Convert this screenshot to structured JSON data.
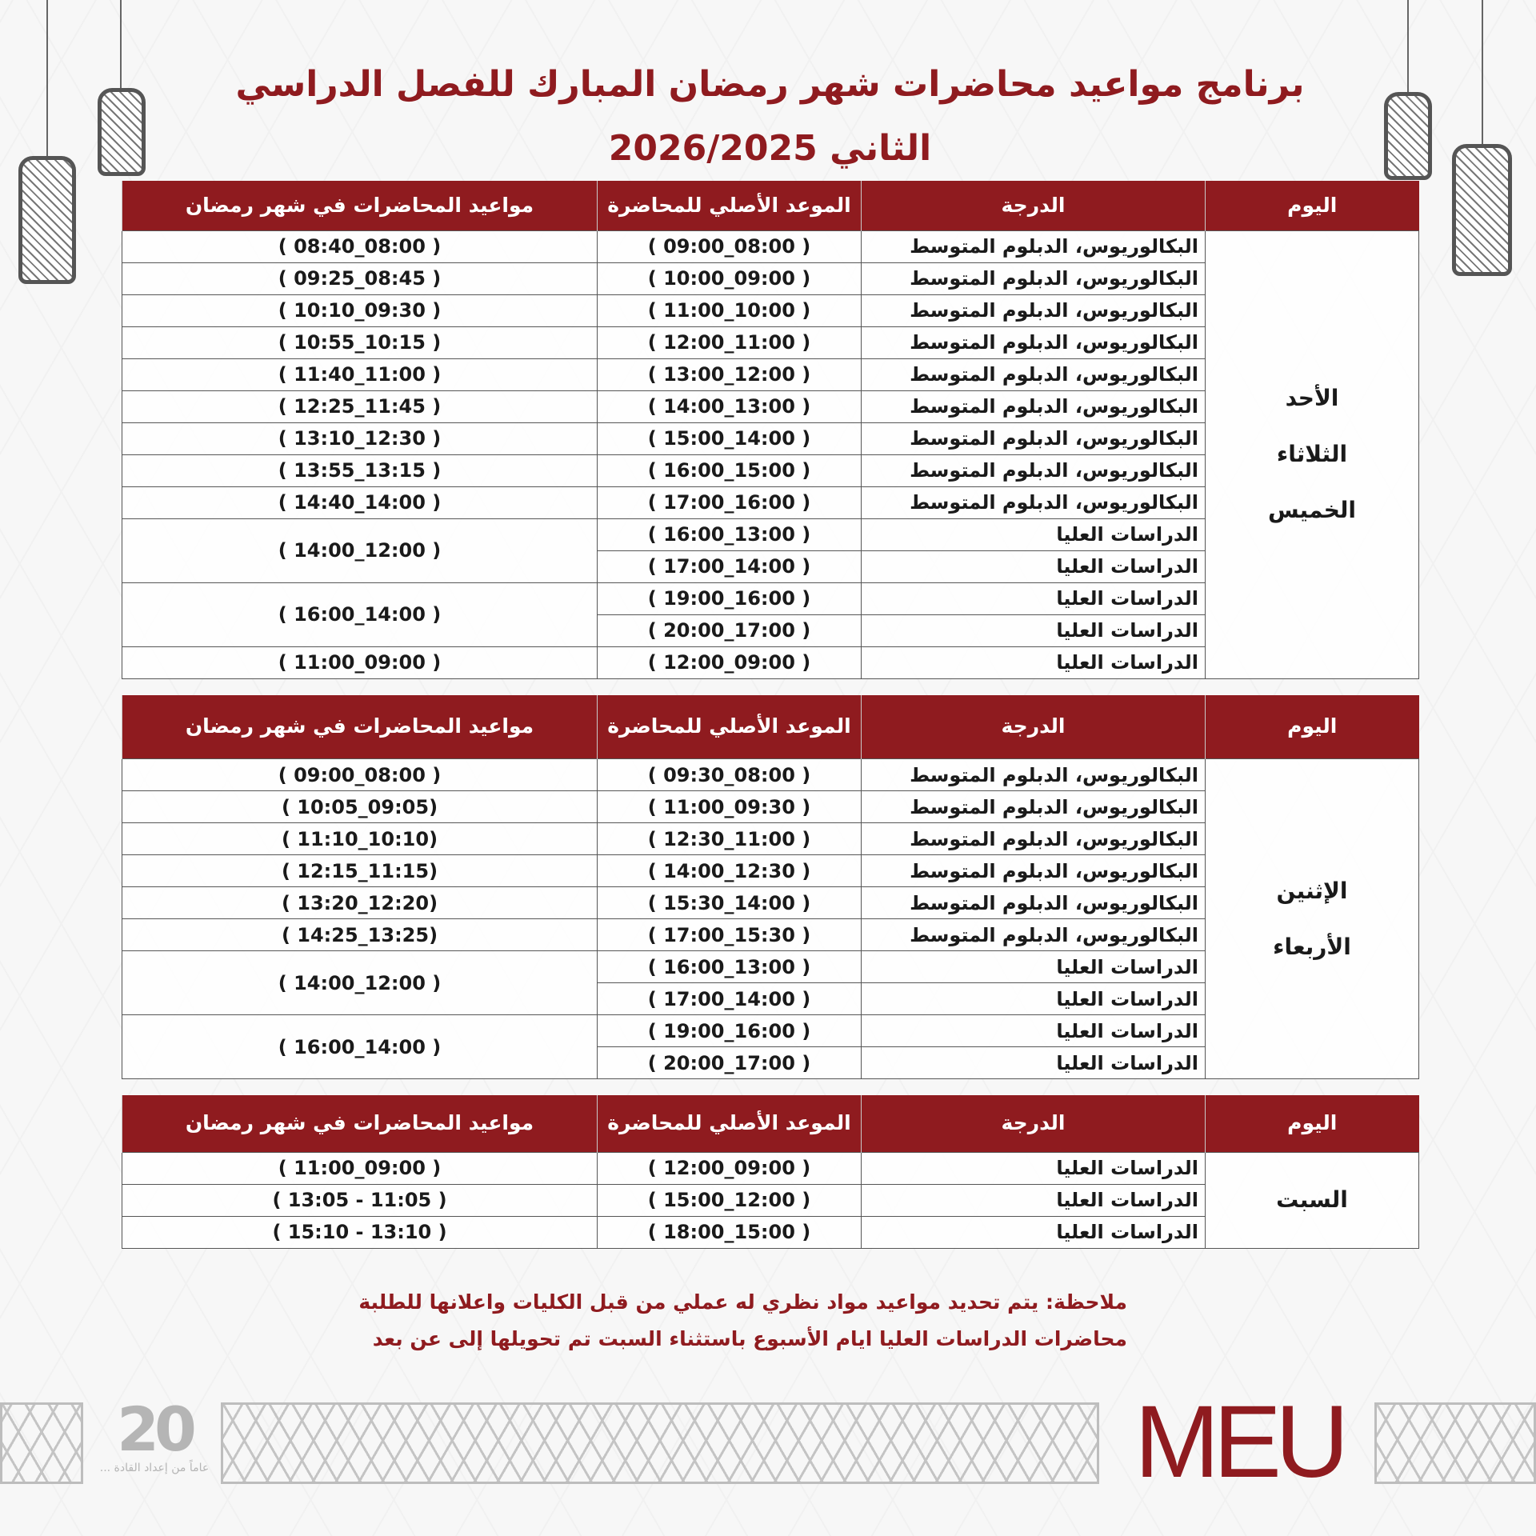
{
  "title": {
    "line1": "برنامج مواعيد محاضرات شهر رمضان المبارك للفصل الدراسي",
    "line2": "الثاني 2026/2025"
  },
  "colors": {
    "accent": "#8f1b1f"
  },
  "headers": [
    "اليوم",
    "الدرجة",
    "الموعد الأصلي للمحاضرة",
    "مواعيد المحاضرات في شهر رمضان"
  ],
  "tables": [
    {
      "days": [
        "الأحد",
        "الثلاثاء",
        "الخميس"
      ],
      "rows": [
        {
          "degree": "البكالوريوس، الدبلوم المتوسط",
          "original": "( 09:00_08:00 )",
          "ramadan": "( 08:40_08:00 )"
        },
        {
          "degree": "البكالوريوس، الدبلوم المتوسط",
          "original": "( 10:00_09:00 )",
          "ramadan": "( 09:25_08:45 )"
        },
        {
          "degree": "البكالوريوس، الدبلوم المتوسط",
          "original": "( 11:00_10:00 )",
          "ramadan": "( 10:10_09:30 )"
        },
        {
          "degree": "البكالوريوس، الدبلوم المتوسط",
          "original": "( 12:00_11:00 )",
          "ramadan": "( 10:55_10:15 )"
        },
        {
          "degree": "البكالوريوس، الدبلوم المتوسط",
          "original": "( 13:00_12:00 )",
          "ramadan": "( 11:40_11:00 )"
        },
        {
          "degree": "البكالوريوس، الدبلوم المتوسط",
          "original": "( 14:00_13:00 )",
          "ramadan": "( 12:25_11:45 )"
        },
        {
          "degree": "البكالوريوس، الدبلوم المتوسط",
          "original": "( 15:00_14:00 )",
          "ramadan": "( 13:10_12:30 )"
        },
        {
          "degree": "البكالوريوس، الدبلوم المتوسط",
          "original": "( 16:00_15:00 )",
          "ramadan": "( 13:55_13:15 )"
        },
        {
          "degree": "البكالوريوس، الدبلوم المتوسط",
          "original": "( 17:00_16:00 )",
          "ramadan": "( 14:40_14:00 )"
        },
        {
          "degree": "الدراسات العليا",
          "original": "( 16:00_13:00 )",
          "ramadan": "( 14:00_12:00 )",
          "span": 2
        },
        {
          "degree": "الدراسات العليا",
          "original": "( 17:00_14:00 )"
        },
        {
          "degree": "الدراسات العليا",
          "original": "( 19:00_16:00 )",
          "ramadan": "( 16:00_14:00 )",
          "span": 2
        },
        {
          "degree": "الدراسات العليا",
          "original": "( 20:00_17:00 )"
        },
        {
          "degree": "الدراسات العليا",
          "original": "( 12:00_09:00 )",
          "ramadan": "( 11:00_09:00 )"
        }
      ]
    },
    {
      "days": [
        "الإثنين",
        "الأربعاء"
      ],
      "rows": [
        {
          "degree": "البكالوريوس، الدبلوم المتوسط",
          "original": "( 09:30_08:00 )",
          "ramadan": "( 09:00_08:00 )"
        },
        {
          "degree": "البكالوريوس، الدبلوم المتوسط",
          "original": "( 11:00_09:30 )",
          "ramadan": "( 10:05_09:05)"
        },
        {
          "degree": "البكالوريوس، الدبلوم المتوسط",
          "original": "( 12:30_11:00 )",
          "ramadan": "( 11:10_10:10)"
        },
        {
          "degree": "البكالوريوس، الدبلوم المتوسط",
          "original": "( 14:00_12:30 )",
          "ramadan": "( 12:15_11:15)"
        },
        {
          "degree": "البكالوريوس، الدبلوم المتوسط",
          "original": "( 15:30_14:00 )",
          "ramadan": "( 13:20_12:20)"
        },
        {
          "degree": "البكالوريوس، الدبلوم المتوسط",
          "original": "( 17:00_15:30 )",
          "ramadan": "( 14:25_13:25)"
        },
        {
          "degree": "الدراسات العليا",
          "original": "( 16:00_13:00 )",
          "ramadan": "( 14:00_12:00 )",
          "span": 2
        },
        {
          "degree": "الدراسات العليا",
          "original": "( 17:00_14:00 )"
        },
        {
          "degree": "الدراسات العليا",
          "original": "( 19:00_16:00 )",
          "ramadan": "( 16:00_14:00 )",
          "span": 2
        },
        {
          "degree": "الدراسات العليا",
          "original": "( 20:00_17:00 )"
        }
      ]
    },
    {
      "days": [
        "السبت"
      ],
      "rows": [
        {
          "degree": "الدراسات العليا",
          "original": "( 12:00_09:00 )",
          "ramadan": "( 11:00_09:00 )"
        },
        {
          "degree": "الدراسات العليا",
          "original": "( 15:00_12:00 )",
          "ramadan": "( 13:05 - 11:05 )"
        },
        {
          "degree": "الدراسات العليا",
          "original": "( 18:00_15:00 )",
          "ramadan": "( 15:10 - 13:10 )"
        }
      ]
    }
  ],
  "notes": [
    "ملاحظة: يتم تحديد مواعيد مواد نظري له عملي من قبل الكليات واعلانها للطلبة",
    "محاضرات الدراسات العليا ايام الأسبوع باستثناء السبت تم تحويلها  إلى عن بعد"
  ],
  "logos": {
    "anniversary_number": "20",
    "anniversary_text": "عاماً من إعداد القادة ...",
    "brand": "MEU"
  }
}
